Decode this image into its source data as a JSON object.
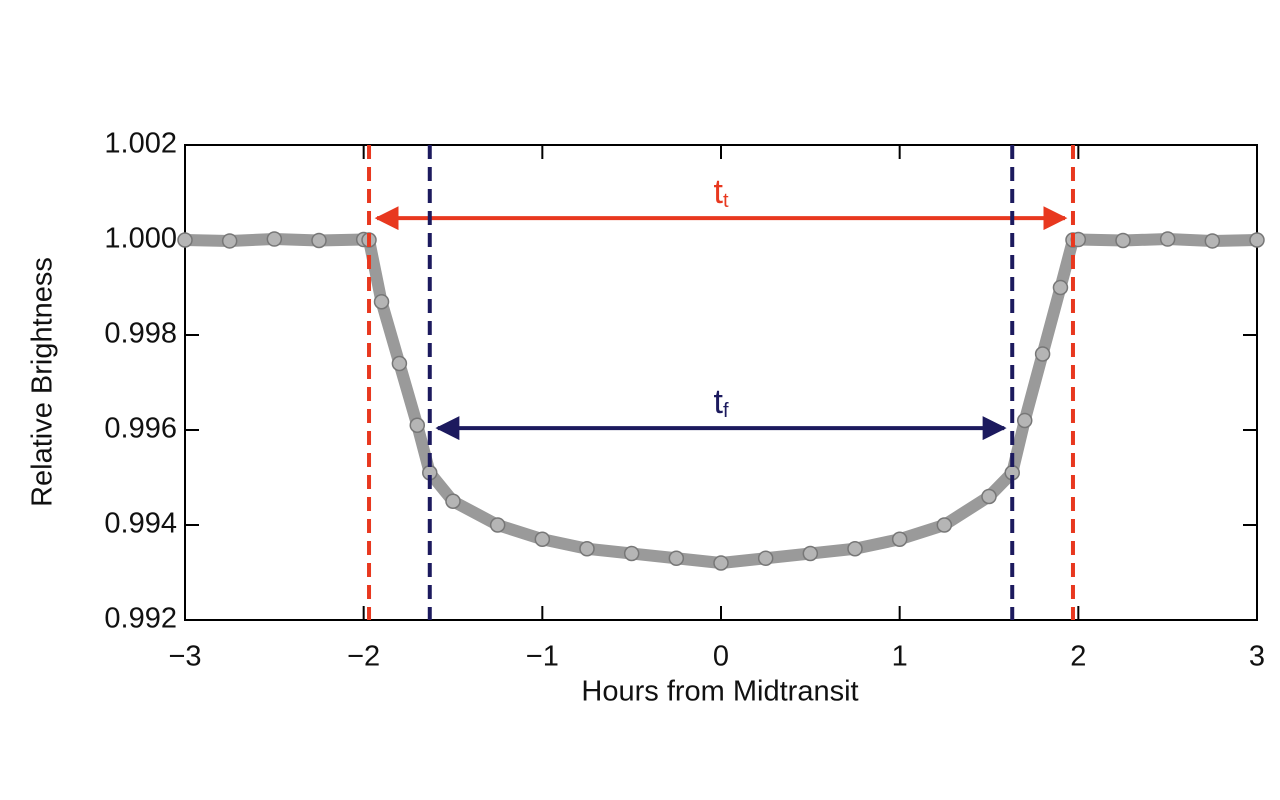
{
  "chart_data": {
    "type": "scatter",
    "x_label": "Hours from Midtransit",
    "y_label": "Relative Brightness",
    "x": [
      -3,
      -2.75,
      -2.5,
      -2.25,
      -2,
      -1.97,
      -1.9,
      -1.8,
      -1.7,
      -1.63,
      -1.5,
      -1.25,
      -1,
      -0.75,
      -0.5,
      -0.25,
      0,
      0.25,
      0.5,
      0.75,
      1,
      1.25,
      1.5,
      1.63,
      1.7,
      1.8,
      1.9,
      1.97,
      2,
      2.25,
      2.5,
      2.75,
      3
    ],
    "series": [
      {
        "color": "#9a9a9a",
        "values": [
          1.0,
          0.99998,
          1.00002,
          0.99999,
          1.00001,
          1.0,
          0.9987,
          0.9974,
          0.9961,
          0.9951,
          0.9945,
          0.994,
          0.9937,
          0.9935,
          0.9934,
          0.9933,
          0.9932,
          0.9933,
          0.9934,
          0.9935,
          0.9937,
          0.994,
          0.9946,
          0.9951,
          0.9962,
          0.9976,
          0.999,
          1.0,
          1.00001,
          0.99999,
          1.00002,
          0.99998,
          1.0
        ]
      }
    ],
    "xlim": [
      -3,
      3
    ],
    "ylim": [
      0.992,
      1.002
    ],
    "xticks": [
      {
        "value": -3,
        "label": "−3"
      },
      {
        "value": -2,
        "label": "−2"
      },
      {
        "value": -1,
        "label": "−1"
      },
      0,
      1,
      2,
      3
    ],
    "yticks": [
      0.992,
      0.994,
      0.996,
      0.998,
      {
        "value": 1,
        "label": "1.000"
      },
      1.002
    ],
    "annotations": [
      {
        "label": "t",
        "subscript": "t",
        "color": "#e8381f",
        "x": [
          -1.97,
          1.97
        ],
        "y": 1.00046
      },
      {
        "label": "t",
        "subscript": "f",
        "color": "#1c1a5e",
        "x": [
          -1.63,
          1.63
        ],
        "y": 0.99604
      }
    ]
  }
}
